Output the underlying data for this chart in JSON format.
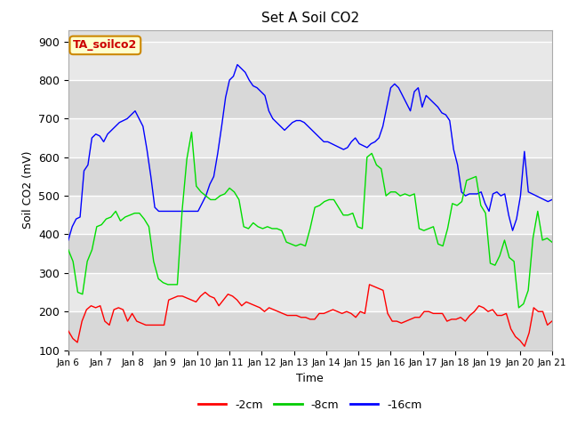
{
  "title": "Set A Soil CO2",
  "xlabel": "Time",
  "ylabel": "Soil CO2 (mV)",
  "ylim": [
    100,
    930
  ],
  "yticks": [
    100,
    200,
    300,
    400,
    500,
    600,
    700,
    800,
    900
  ],
  "fig_bg": "#ffffff",
  "plot_bg": "#e0e0e0",
  "annotation_text": "TA_soilco2",
  "annotation_bg": "#ffffcc",
  "annotation_border": "#cc8800",
  "annotation_text_color": "#cc0000",
  "legend_entries": [
    "-2cm",
    "-8cm",
    "-16cm"
  ],
  "legend_colors": [
    "#ff0000",
    "#00cc00",
    "#0000ff"
  ],
  "line_width": 1.0,
  "colors": {
    "2cm": "#ff0000",
    "8cm": "#00dd00",
    "16cm": "#0000ff"
  },
  "xtick_labels": [
    "Jan 6",
    "Jan 7",
    "Jan 8",
    "Jan 9",
    "Jan 10",
    "Jan 11",
    "Jan 12",
    "Jan 13",
    "Jan 14",
    "Jan 15",
    "Jan 16",
    "Jan 17",
    "Jan 18",
    "Jan 19",
    "Jan 20",
    "Jan 21"
  ],
  "grid_color": "#ffffff",
  "series_2cm": [
    150,
    130,
    120,
    175,
    205,
    215,
    210,
    215,
    175,
    165,
    205,
    210,
    205,
    175,
    195,
    175,
    170,
    165,
    165,
    165,
    165,
    165,
    230,
    235,
    240,
    240,
    235,
    230,
    225,
    240,
    250,
    240,
    235,
    215,
    230,
    245,
    240,
    230,
    215,
    225,
    220,
    215,
    210,
    200,
    210,
    205,
    200,
    195,
    190,
    190,
    190,
    185,
    185,
    180,
    180,
    195,
    195,
    200,
    205,
    200,
    195,
    200,
    195,
    185,
    200,
    195,
    270,
    265,
    260,
    255,
    195,
    175,
    175,
    170,
    175,
    180,
    185,
    185,
    200,
    200,
    195,
    195,
    195,
    175,
    180,
    180,
    185,
    175,
    190,
    200,
    215,
    210,
    200,
    205,
    190,
    190,
    195,
    155,
    135,
    125,
    110,
    145,
    210,
    200,
    200,
    165,
    175
  ],
  "series_8cm": [
    360,
    330,
    250,
    245,
    330,
    360,
    420,
    425,
    440,
    445,
    460,
    435,
    445,
    450,
    455,
    455,
    440,
    420,
    330,
    285,
    275,
    270,
    270,
    270,
    460,
    595,
    665,
    525,
    510,
    500,
    490,
    490,
    500,
    505,
    520,
    510,
    490,
    420,
    415,
    430,
    420,
    415,
    420,
    415,
    415,
    410,
    380,
    375,
    370,
    375,
    370,
    415,
    470,
    475,
    485,
    490,
    490,
    470,
    450,
    450,
    455,
    420,
    415,
    600,
    610,
    580,
    570,
    500,
    510,
    510,
    500,
    505,
    500,
    505,
    415,
    410,
    415,
    420,
    375,
    370,
    415,
    480,
    475,
    485,
    540,
    545,
    550,
    475,
    455,
    325,
    320,
    345,
    385,
    340,
    330,
    210,
    220,
    255,
    390,
    460,
    385,
    390,
    380
  ],
  "series_16cm": [
    385,
    420,
    440,
    445,
    565,
    580,
    650,
    660,
    655,
    640,
    660,
    670,
    680,
    690,
    695,
    700,
    710,
    720,
    700,
    680,
    620,
    550,
    470,
    460,
    460,
    460,
    460,
    460,
    460,
    460,
    460,
    460,
    460,
    460,
    480,
    500,
    530,
    550,
    610,
    680,
    755,
    800,
    810,
    840,
    830,
    820,
    800,
    785,
    780,
    770,
    760,
    720,
    700,
    690,
    680,
    670,
    680,
    690,
    695,
    695,
    690,
    680,
    670,
    660,
    650,
    640,
    640,
    635,
    630,
    625,
    620,
    625,
    640,
    650,
    635,
    630,
    625,
    635,
    640,
    650,
    680,
    730,
    780,
    790,
    780,
    760,
    740,
    720,
    770,
    780,
    730,
    760,
    750,
    740,
    730,
    715,
    710,
    695,
    620,
    580,
    510,
    500,
    505,
    505,
    505,
    510,
    480,
    460,
    505,
    510,
    500,
    505,
    450,
    410,
    440,
    500,
    615,
    510,
    505,
    500,
    495,
    490,
    485,
    490
  ]
}
